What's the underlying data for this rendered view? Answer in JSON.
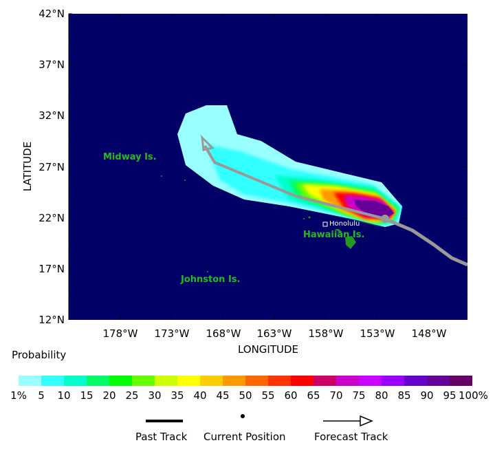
{
  "map": {
    "y_axis_title": "LATITUDE",
    "x_axis_title": "LONGITUDE",
    "lat_ticks": [
      "42°N",
      "37°N",
      "32°N",
      "27°N",
      "22°N",
      "17°N",
      "12°N"
    ],
    "lon_ticks": [
      "178°W",
      "173°W",
      "168°W",
      "163°W",
      "158°W",
      "153°W",
      "148°W"
    ],
    "ocean_color": "#000066",
    "places": {
      "midway": "Midway Is.",
      "hawaiian": "Hawaiian Is.",
      "johnston": "Johnston Is.",
      "honolulu": "Honolulu"
    },
    "place_color": "#22bb22",
    "track_color": "#999999"
  },
  "colorbar": {
    "title": "Probability",
    "colors": [
      "#99ffff",
      "#33ffff",
      "#00ffcc",
      "#00ff66",
      "#00ff00",
      "#66ff00",
      "#ccff00",
      "#ffff00",
      "#ffcc00",
      "#ff9900",
      "#ff6600",
      "#ff3300",
      "#ff0000",
      "#cc0066",
      "#cc00cc",
      "#cc00ff",
      "#9900ff",
      "#6600cc",
      "#660099",
      "#660066"
    ],
    "labels": [
      "1%",
      "5",
      "10",
      "15",
      "20",
      "25",
      "30",
      "35",
      "40",
      "45",
      "50",
      "55",
      "60",
      "65",
      "70",
      "75",
      "80",
      "85",
      "90",
      "95",
      "100%"
    ]
  },
  "legend": {
    "past_track": "Past Track",
    "current_position": "Current Position",
    "forecast_track": "Forecast Track"
  }
}
